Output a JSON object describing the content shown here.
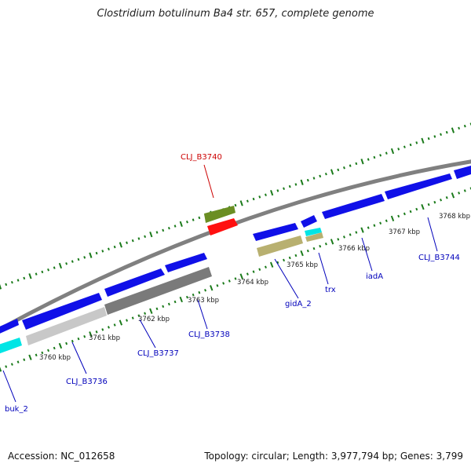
{
  "title": "Clostridium botulinum Ba4 str. 657, complete genome",
  "footer": {
    "accession": "Accession: NC_012658",
    "topology": "Topology: circular; Length: 3,977,794 bp; Genes: 3,799"
  },
  "scale": {
    "ticks": [
      "3760 kbp",
      "3761 kbp",
      "3762 kbp",
      "3763 kbp",
      "3764 kbp",
      "3765 kbp",
      "3766 kbp",
      "3767 kbp",
      "3768 kbp"
    ]
  },
  "genes": [
    {
      "id": "cds-1",
      "color": "#1010e8",
      "label": ""
    },
    {
      "id": "cds-2",
      "color": "#1010e8",
      "label": ""
    },
    {
      "id": "cds-3",
      "color": "#1010e8",
      "label": ""
    },
    {
      "id": "cds-4",
      "color": "#1010e8",
      "label": ""
    },
    {
      "id": "cds-5",
      "color": "#1010e8",
      "label": ""
    },
    {
      "id": "cds-6",
      "color": "#1010e8",
      "label": ""
    },
    {
      "id": "cds-7",
      "color": "#1010e8",
      "label": ""
    },
    {
      "id": "cds-8",
      "color": "#1010e8",
      "label": ""
    },
    {
      "id": "cds-9",
      "color": "#1010e8",
      "label": ""
    },
    {
      "id": "cds-10",
      "color": "#1010e8",
      "label": ""
    },
    {
      "id": "cds-11",
      "color": "#1010e8",
      "label": ""
    },
    {
      "id": "rna-1",
      "color": "#ff1010",
      "label": ""
    },
    {
      "id": "rna-2",
      "color": "#6b8e23",
      "label": ""
    },
    {
      "id": "rna-3",
      "color": "#00e5e5",
      "label": ""
    },
    {
      "id": "rna-4",
      "color": "#00e5e5",
      "label": ""
    },
    {
      "id": "rna-5",
      "color": "#c8c8c8",
      "label": ""
    },
    {
      "id": "rna-6",
      "color": "#7a7a7a",
      "label": ""
    },
    {
      "id": "rna-7",
      "color": "#b8b070",
      "label": ""
    },
    {
      "id": "rna-8",
      "color": "#b8b070",
      "label": ""
    }
  ],
  "labels": [
    {
      "id": "CLJ_B3740",
      "text": "CLJ_B3740",
      "color": "#cc0000"
    },
    {
      "id": "buk_2",
      "text": "buk_2",
      "color": "#0000bb"
    },
    {
      "id": "CLJ_B3736",
      "text": "CLJ_B3736",
      "color": "#0000bb"
    },
    {
      "id": "CLJ_B3737",
      "text": "CLJ_B3737",
      "color": "#0000bb"
    },
    {
      "id": "CLJ_B3738",
      "text": "CLJ_B3738",
      "color": "#0000bb"
    },
    {
      "id": "gidA_2",
      "text": "gidA_2",
      "color": "#0000bb"
    },
    {
      "id": "trx",
      "text": "trx",
      "color": "#0000bb"
    },
    {
      "id": "iadA",
      "text": "iadA",
      "color": "#0000bb"
    },
    {
      "id": "CLJ_B3744",
      "text": "CLJ_B3744",
      "color": "#0000bb"
    }
  ],
  "colors": {
    "backbone": "#808080",
    "ticks": "#1a7a1a",
    "tick_label": "#222222"
  }
}
